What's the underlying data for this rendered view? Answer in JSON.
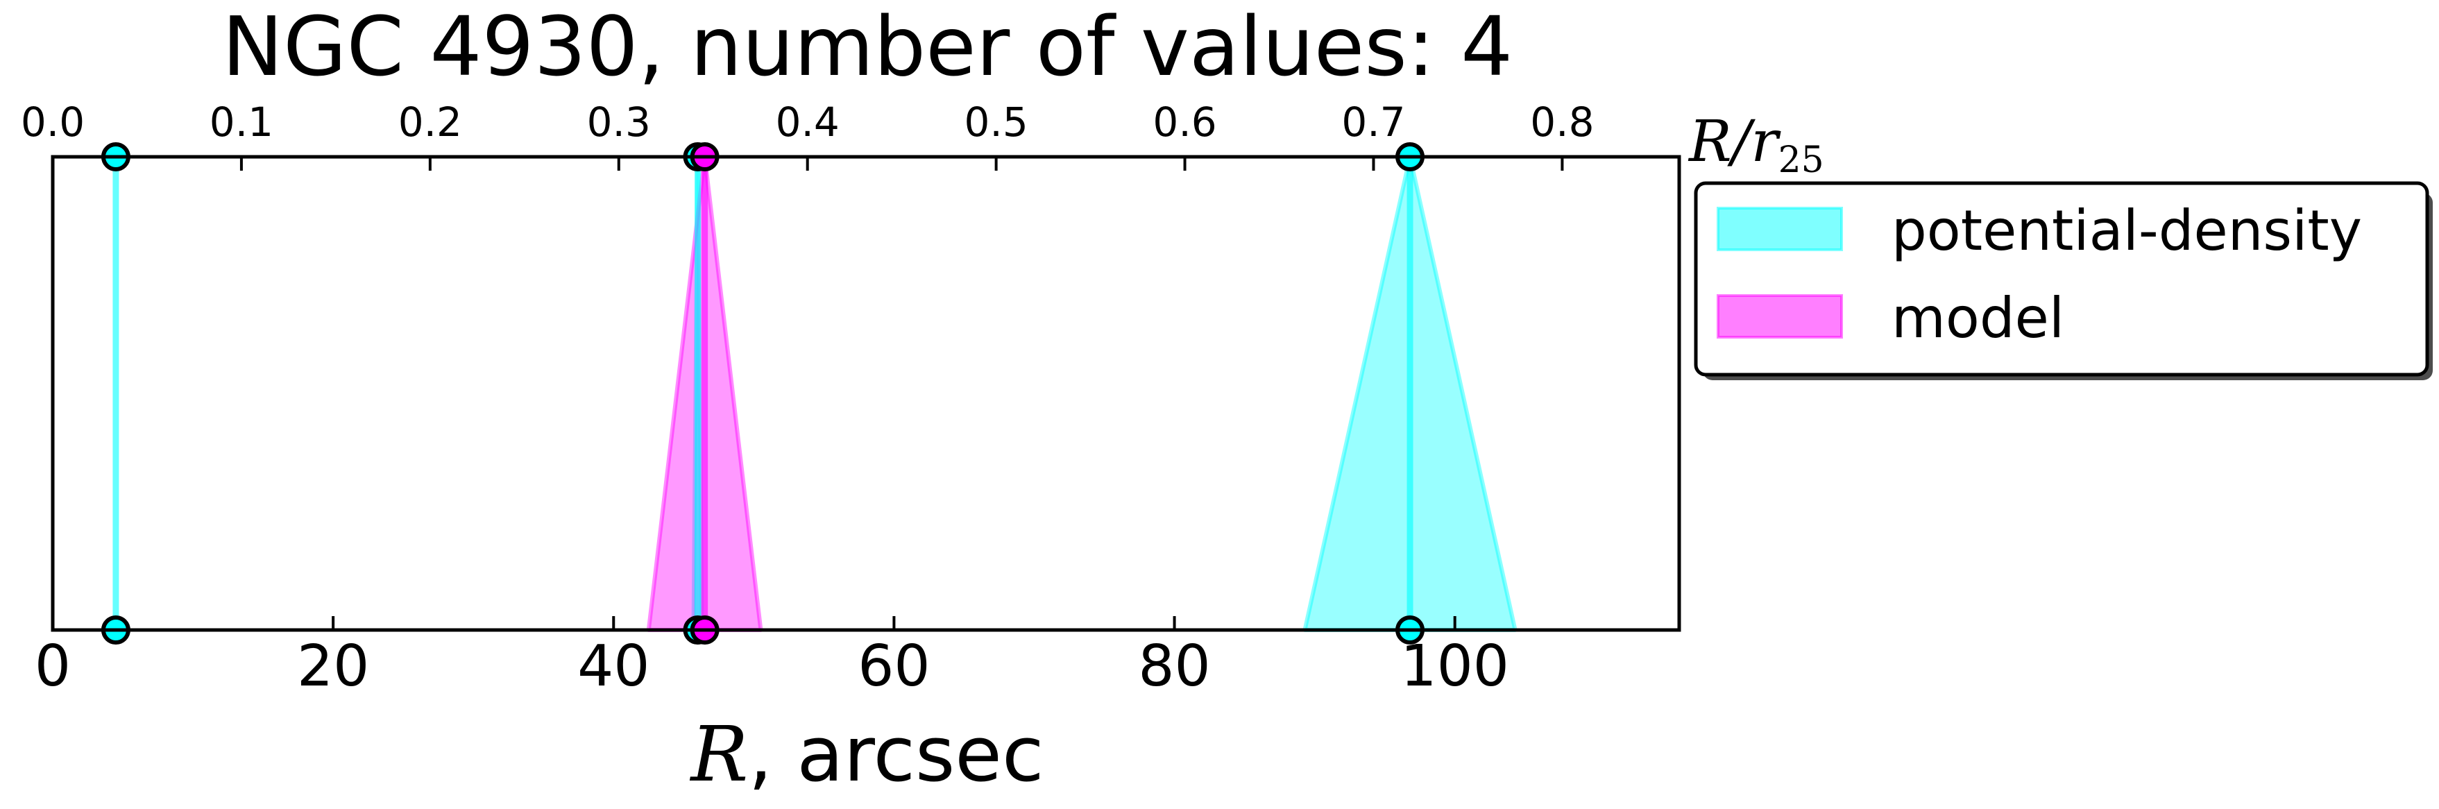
{
  "chart_data": {
    "type": "line",
    "title": "NGC 4930, number of values: 4",
    "xlabel": {
      "math": "R",
      "rest": ", arcsec"
    },
    "x_top_label": {
      "base": "R/r",
      "sub": "25"
    },
    "xlim": [
      0,
      116
    ],
    "x_ticks": [
      0,
      20,
      40,
      60,
      80,
      100
    ],
    "x_tick_labels": [
      "0",
      "20",
      "40",
      "60",
      "80",
      "100"
    ],
    "x_top_lim": [
      0,
      0.862
    ],
    "x_top_ticks": [
      0.0,
      0.1,
      0.2,
      0.3,
      0.4,
      0.5,
      0.6,
      0.7,
      0.8
    ],
    "x_top_tick_labels": [
      "0.0",
      "0.1",
      "0.2",
      "0.3",
      "0.4",
      "0.5",
      "0.6",
      "0.7",
      "0.8"
    ],
    "grid": false,
    "legend_placement": "outside right, top",
    "series": [
      {
        "name": "potential-density",
        "color": "#00ffff",
        "values": [
          4.5,
          46.0,
          96.8
        ],
        "uncertainties": [
          0.0,
          0.3,
          7.5
        ]
      },
      {
        "name": "model",
        "color": "#ff00ff",
        "values": [
          46.5
        ],
        "uncertainties": [
          4.0
        ]
      }
    ]
  }
}
